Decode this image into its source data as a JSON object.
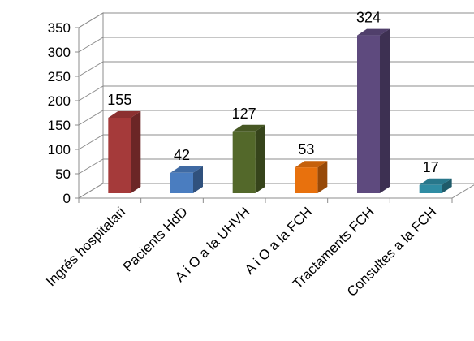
{
  "chart_data": {
    "type": "bar",
    "style": "3d-column",
    "categories": [
      "Ingrés hospitalari",
      "Pacients HdD",
      "A i O a la UHVH",
      "A i O a la FCH",
      "Tractaments FCH",
      "Consultes a la FCH"
    ],
    "values": [
      155,
      42,
      127,
      53,
      324,
      17
    ],
    "data_labels": [
      "155",
      "42",
      "127",
      "53",
      "324",
      "17"
    ],
    "colors": [
      "#a53a3a",
      "#4a7dc0",
      "#53682a",
      "#e8710d",
      "#5e4a7e",
      "#2f8ca3"
    ],
    "yticks": [
      "0",
      "50",
      "100",
      "150",
      "200",
      "250",
      "300",
      "350"
    ],
    "ylim": [
      0,
      350
    ],
    "grid": true,
    "legend": false,
    "title": "",
    "xlabel": "",
    "ylabel": ""
  }
}
